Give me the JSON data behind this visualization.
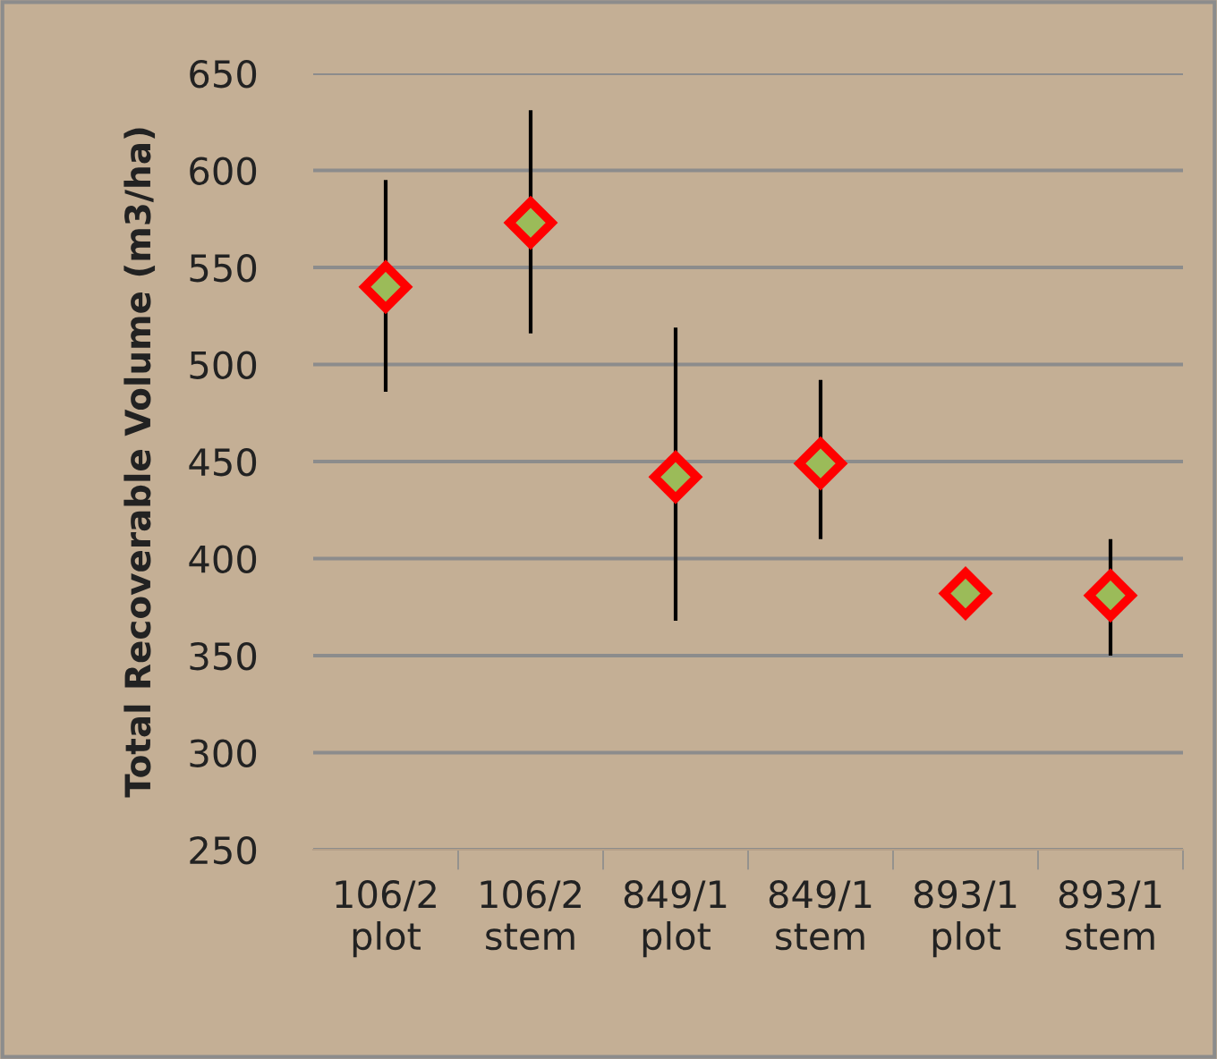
{
  "chart_data": {
    "type": "scatter",
    "ylabel": "Total Recoverable Volume (m3/ha)",
    "categories": [
      "106/2\nplot",
      "106/2\nstem",
      "849/1\nplot",
      "849/1\nstem",
      "893/1\nplot",
      "893/1\nstem"
    ],
    "series": [
      {
        "color": "#ff0000",
        "values": [
          540,
          573,
          442,
          449,
          382,
          381
        ],
        "errors": [
          [
            486,
            595
          ],
          [
            516,
            631
          ],
          [
            368,
            519
          ],
          [
            410,
            492
          ],
          null,
          [
            350,
            410
          ]
        ]
      }
    ],
    "ylim": [
      250,
      650
    ],
    "yticks": [
      250,
      300,
      350,
      400,
      450,
      500,
      550,
      600,
      650
    ],
    "grid": "y",
    "marker": "diamond",
    "legend": false
  }
}
